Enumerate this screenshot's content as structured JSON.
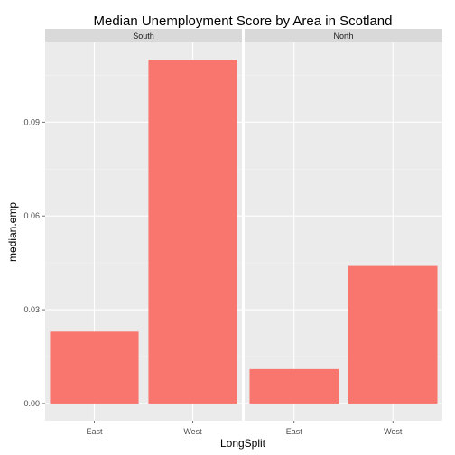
{
  "chart_data": {
    "type": "bar",
    "title": "Median Unemployment Score by Area in Scotland",
    "xlabel": "LongSplit",
    "ylabel": "median.emp",
    "ylim": [
      -0.0055,
      0.1155
    ],
    "yticks": [
      0.0,
      0.03,
      0.06,
      0.09
    ],
    "ytick_labels": [
      "0.00",
      "0.03",
      "0.06",
      "0.09"
    ],
    "categories": [
      "East",
      "West"
    ],
    "bar_color": "#F8766D",
    "panel_background": "#EBEBEB",
    "strip_background": "#D9D9D9",
    "grid": true,
    "facets": [
      {
        "name": "South",
        "values": [
          0.023,
          0.11
        ]
      },
      {
        "name": "North",
        "values": [
          0.011,
          0.044
        ]
      }
    ]
  }
}
